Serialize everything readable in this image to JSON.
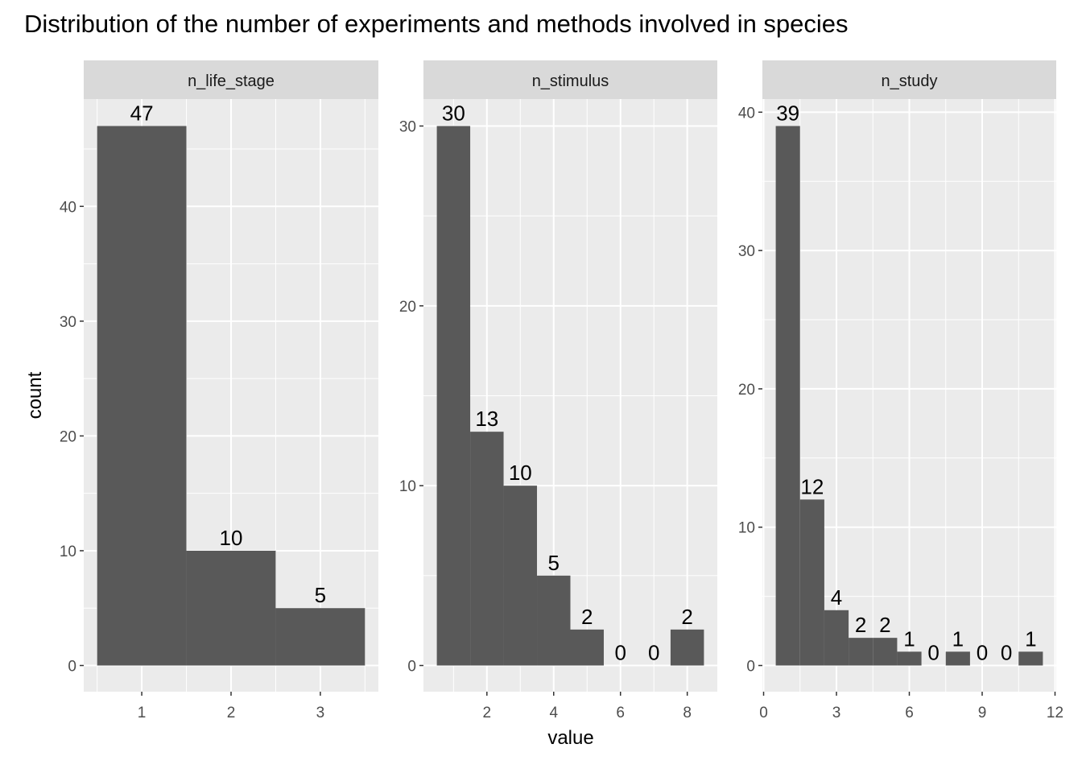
{
  "chart_data": {
    "type": "bar",
    "title": "Distribution of the number of experiments and methods involved in species",
    "xlabel": "value",
    "ylabel": "count",
    "grid": true,
    "colors": {
      "bar": "#595959",
      "panel_bg": "#ebebeb",
      "strip_bg": "#d9d9d9",
      "grid": "#ffffff",
      "tick": "#333333"
    },
    "panels": [
      {
        "name": "n_life_stage",
        "x": [
          1,
          2,
          3
        ],
        "values": [
          47,
          10,
          5
        ],
        "bar_width": 1,
        "xlim": [
          0.5,
          3.5
        ],
        "ylim": [
          0,
          47
        ],
        "xticks": [
          1,
          2,
          3
        ],
        "yticks": [
          0,
          10,
          20,
          30,
          40
        ]
      },
      {
        "name": "n_stimulus",
        "x": [
          1,
          2,
          3,
          4,
          5,
          6,
          7,
          8
        ],
        "values": [
          30,
          13,
          10,
          5,
          2,
          0,
          0,
          2
        ],
        "bar_width": 1,
        "xlim": [
          0.5,
          8.5
        ],
        "ylim": [
          0,
          30
        ],
        "xticks": [
          2,
          4,
          6,
          8
        ],
        "yticks": [
          0,
          10,
          20,
          30
        ]
      },
      {
        "name": "n_study",
        "x": [
          1,
          2,
          3,
          4,
          5,
          6,
          7,
          8,
          9,
          10,
          11
        ],
        "values": [
          39,
          12,
          4,
          2,
          2,
          1,
          0,
          1,
          0,
          0,
          1
        ],
        "bar_width": 1,
        "xlim": [
          0.5,
          11.5
        ],
        "ylim": [
          0,
          39
        ],
        "xticks": [
          0,
          3,
          6,
          9,
          12
        ],
        "yticks": [
          0,
          10,
          20,
          30,
          40
        ]
      }
    ]
  }
}
